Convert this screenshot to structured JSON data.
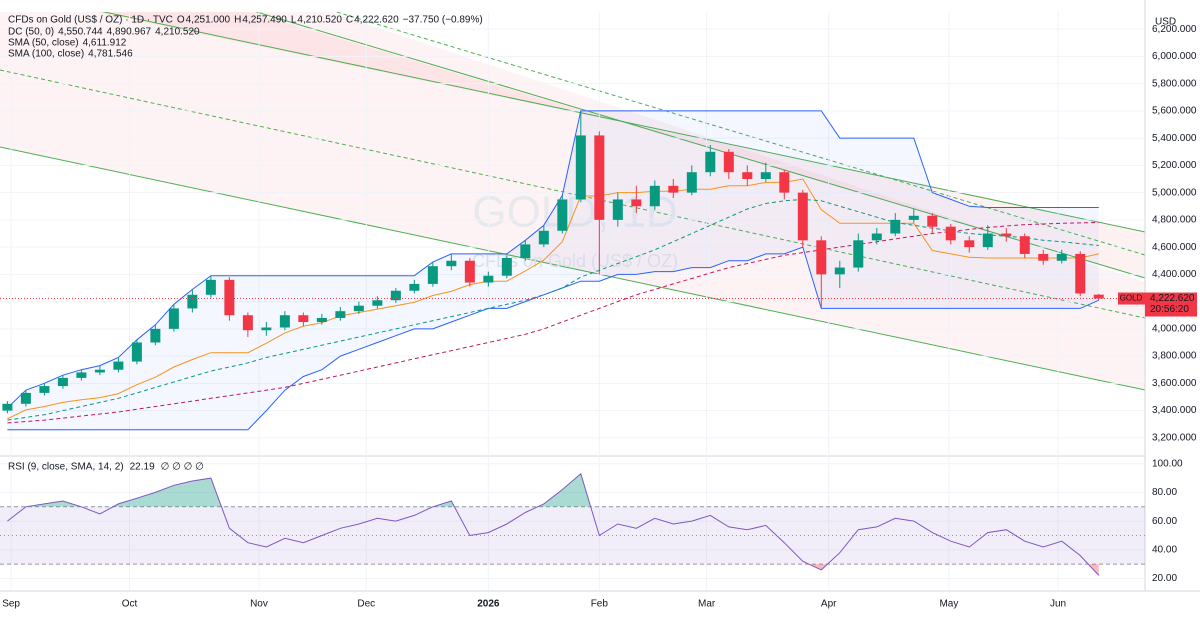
{
  "header": {
    "title": "CFDs on Gold (US$ / OZ) · 1D · TVC",
    "ohlc": [
      {
        "key": "O",
        "value": "4,251.000"
      },
      {
        "key": "H",
        "value": "4,257.490"
      },
      {
        "key": "L",
        "value": "4,210.520"
      },
      {
        "key": "C",
        "value": "4,222.620"
      }
    ],
    "change": "−37.750 (−0.89%)",
    "currency": "USD",
    "watermark": "GOLD, 1D",
    "watermark_sub": "CFDs on Gold (US$ / OZ)",
    "price_tag": {
      "symbol": "GOLD",
      "price": "4,222.620",
      "countdown": "20:56:20"
    }
  },
  "legend": [
    {
      "name": "DC (50, 0)",
      "values": [
        "4,550.744",
        "4,890.967",
        "4,210.520"
      ],
      "colors": [
        "#f7931a",
        "#2962ff",
        "#2962ff"
      ]
    },
    {
      "name": "SMA (50, close)",
      "values": [
        "4,611.912"
      ],
      "colors": [
        "#089981"
      ]
    },
    {
      "name": "SMA (100, close)",
      "values": [
        "4,781.546"
      ],
      "colors": [
        "#c2185b"
      ]
    }
  ],
  "chart_data": [
    {
      "type": "candlestick",
      "up_color": "#089981",
      "down_color": "#f23645",
      "open": [
        3400,
        3450,
        3530,
        3580,
        3640,
        3680,
        3700,
        3760,
        3900,
        4000,
        4150,
        4250,
        4360,
        4100,
        3990,
        4010,
        4100,
        4050,
        4080,
        4130,
        4170,
        4210,
        4280,
        4330,
        4460,
        4500,
        4340,
        4390,
        4520,
        4620,
        4720,
        4950,
        5420,
        4800,
        4950,
        4900,
        5050,
        5000,
        5150,
        5300,
        5150,
        5100,
        5150,
        5000,
        4650,
        4400,
        4450,
        4650,
        4700,
        4800,
        4830,
        4750,
        4650,
        4600,
        4700,
        4680,
        4550,
        4500,
        4550,
        4251
      ],
      "high": [
        3470,
        3550,
        3600,
        3660,
        3700,
        3730,
        3790,
        3920,
        4030,
        4180,
        4290,
        4390,
        4380,
        4120,
        4050,
        4130,
        4120,
        4110,
        4160,
        4200,
        4240,
        4300,
        4360,
        4490,
        4550,
        4520,
        4420,
        4540,
        4650,
        4760,
        4980,
        5600,
        5450,
        5000,
        5050,
        5090,
        5100,
        5200,
        5350,
        5320,
        5200,
        5220,
        5170,
        5020,
        4680,
        4500,
        4700,
        4740,
        4850,
        4880,
        4850,
        4770,
        4680,
        4760,
        4740,
        4700,
        4580,
        4580,
        4570,
        4257.49
      ],
      "low": [
        3380,
        3430,
        3510,
        3560,
        3620,
        3660,
        3680,
        3740,
        3880,
        3980,
        4120,
        4230,
        4060,
        3940,
        3950,
        3990,
        4020,
        4030,
        4060,
        4110,
        4150,
        4190,
        4260,
        4310,
        4430,
        4310,
        4310,
        4370,
        4500,
        4600,
        4700,
        4930,
        4400,
        4750,
        4850,
        4870,
        4960,
        4980,
        5120,
        5100,
        5050,
        5080,
        4950,
        4600,
        4150,
        4300,
        4420,
        4620,
        4680,
        4780,
        4700,
        4620,
        4560,
        4580,
        4640,
        4520,
        4470,
        4480,
        4240,
        4210.52
      ],
      "close": [
        3450,
        3530,
        3580,
        3640,
        3680,
        3700,
        3760,
        3900,
        4000,
        4150,
        4250,
        4360,
        4100,
        3990,
        4010,
        4100,
        4050,
        4080,
        4130,
        4170,
        4210,
        4280,
        4330,
        4460,
        4500,
        4340,
        4390,
        4520,
        4620,
        4720,
        4950,
        5420,
        4800,
        4950,
        4900,
        5050,
        5000,
        5150,
        5300,
        5150,
        5100,
        5150,
        5000,
        4650,
        4400,
        4450,
        4650,
        4700,
        4800,
        4830,
        4750,
        4650,
        4600,
        4700,
        4680,
        4550,
        4500,
        4550,
        4260,
        4222.62
      ],
      "series": [
        {
          "color": "#2962ff",
          "values": [
            3420,
            3550,
            3600,
            3660,
            3700,
            3730,
            3790,
            3920,
            4030,
            4180,
            4290,
            4390,
            4390,
            4390,
            4390,
            4390,
            4390,
            4390,
            4390,
            4390,
            4390,
            4390,
            4390,
            4490,
            4550,
            4550,
            4550,
            4550,
            4650,
            4760,
            4980,
            5600,
            5600,
            5600,
            5600,
            5600,
            5600,
            5600,
            5600,
            5600,
            5600,
            5600,
            5600,
            5600,
            5600,
            5400,
            5400,
            5400,
            5400,
            5400,
            5000,
            4950,
            4900,
            4890.967,
            4890.967,
            4890.967,
            4890.967,
            4890.967,
            4890.967,
            4890.967
          ]
        },
        {
          "color": "#2962ff",
          "values": [
            3260,
            3260,
            3260,
            3260,
            3260,
            3260,
            3260,
            3260,
            3260,
            3260,
            3260,
            3260,
            3260,
            3260,
            3400,
            3550,
            3650,
            3700,
            3800,
            3850,
            3900,
            3950,
            4000,
            4000,
            4050,
            4100,
            4150,
            4150,
            4200,
            4250,
            4300,
            4350,
            4350,
            4400,
            4400,
            4420,
            4420,
            4450,
            4450,
            4500,
            4500,
            4550,
            4550,
            4600,
            4150,
            4150,
            4150,
            4150,
            4150,
            4150,
            4150,
            4150,
            4150,
            4150,
            4150,
            4150,
            4150,
            4150,
            4150,
            4210.52
          ]
        },
        {
          "color": "#f7931a",
          "values": [
            3340,
            3405,
            3430,
            3460,
            3480,
            3495,
            3525,
            3590,
            3645,
            3720,
            3775,
            3825,
            3825,
            3825,
            3895,
            3970,
            4020,
            4045,
            4095,
            4120,
            4145,
            4170,
            4195,
            4245,
            4275,
            4325,
            4350,
            4350,
            4425,
            4505,
            4640,
            4975,
            4975,
            5000,
            5000,
            5010,
            5010,
            5025,
            5025,
            5050,
            5050,
            5075,
            5075,
            5100,
            4875,
            4775,
            4775,
            4775,
            4775,
            4775,
            4575,
            4550,
            4525,
            4520,
            4520,
            4520,
            4520,
            4520,
            4520,
            4550.744
          ]
        },
        {
          "color": "#089981",
          "dash": true,
          "values": [
            3330,
            3350,
            3370,
            3400,
            3430,
            3460,
            3490,
            3530,
            3570,
            3610,
            3650,
            3690,
            3720,
            3750,
            3790,
            3820,
            3850,
            3880,
            3910,
            3940,
            3970,
            4000,
            4030,
            4060,
            4090,
            4120,
            4150,
            4180,
            4210,
            4250,
            4300,
            4380,
            4430,
            4480,
            4530,
            4580,
            4640,
            4700,
            4760,
            4820,
            4880,
            4920,
            4940,
            4950,
            4940,
            4900,
            4860,
            4820,
            4780,
            4760,
            4740,
            4720,
            4700,
            4690,
            4680,
            4670,
            4650,
            4640,
            4625,
            4611.912
          ]
        },
        {
          "color": "#c2185b",
          "dash": true,
          "values": [
            3310,
            3320,
            3330,
            3345,
            3360,
            3375,
            3390,
            3410,
            3430,
            3450,
            3470,
            3490,
            3510,
            3530,
            3550,
            3570,
            3600,
            3630,
            3660,
            3690,
            3720,
            3750,
            3780,
            3810,
            3840,
            3870,
            3900,
            3930,
            3960,
            4000,
            4050,
            4100,
            4150,
            4200,
            4250,
            4290,
            4330,
            4370,
            4410,
            4450,
            4480,
            4510,
            4540,
            4560,
            4580,
            4600,
            4620,
            4640,
            4660,
            4680,
            4700,
            4715,
            4730,
            4745,
            4755,
            4765,
            4770,
            4775,
            4778,
            4781.546
          ]
        }
      ],
      "xlim": [
        -0.4,
        61.5
      ],
      "ylim": [
        3074,
        6326
      ],
      "yticks": [
        {
          "value": 3200,
          "label": "3,200.000"
        },
        {
          "value": 3400,
          "label": "3,400.000"
        },
        {
          "value": 3600,
          "label": "3,600.000"
        },
        {
          "value": 3800,
          "label": "3,800.000"
        },
        {
          "value": 4000,
          "label": "4,000.000"
        },
        {
          "value": 4200,
          "label": "4,200.000"
        },
        {
          "value": 4400,
          "label": "4,400.000"
        },
        {
          "value": 4600,
          "label": "4,600.000"
        },
        {
          "value": 4800,
          "label": "4,800.000"
        },
        {
          "value": 5000,
          "label": "5,000.000"
        },
        {
          "value": 5200,
          "label": "5,200.000"
        },
        {
          "value": 5400,
          "label": "5,400.000"
        },
        {
          "value": 5600,
          "label": "5,600.000"
        },
        {
          "value": 5800,
          "label": "5,800.000"
        },
        {
          "value": 6000,
          "label": "6,000.000"
        },
        {
          "value": 6200,
          "label": "6,200.000"
        }
      ],
      "xticks": [
        {
          "value": 0.2,
          "label": "Sep"
        },
        {
          "value": 6.6,
          "label": "Oct"
        },
        {
          "value": 13.6,
          "label": "Nov"
        },
        {
          "value": 19.4,
          "label": "Dec"
        },
        {
          "value": 26,
          "label": "2026"
        },
        {
          "value": 32,
          "label": "Feb"
        },
        {
          "value": 37.8,
          "label": "Mar"
        },
        {
          "value": 44.4,
          "label": "Apr"
        },
        {
          "value": 50.9,
          "label": "May"
        },
        {
          "value": 56.8,
          "label": "Jun"
        }
      ]
    },
    {
      "type": "line",
      "title": "RSI (9, close, SMA, 14, 2)",
      "value_label": "22.19",
      "extra": "∅ ∅ ∅ ∅",
      "color": "#7e57c2",
      "values": [
        60,
        70,
        72,
        74,
        70,
        65,
        72,
        76,
        80,
        85,
        88,
        90,
        55,
        45,
        42,
        48,
        45,
        50,
        55,
        58,
        62,
        60,
        64,
        70,
        74,
        50,
        52,
        58,
        66,
        72,
        82,
        93,
        50,
        58,
        55,
        62,
        58,
        60,
        64,
        56,
        54,
        57,
        45,
        32,
        26,
        38,
        54,
        56,
        62,
        60,
        52,
        46,
        42,
        52,
        54,
        46,
        42,
        46,
        36,
        22.19
      ],
      "levels": [
        70,
        50,
        30
      ],
      "xlim": [
        -0.4,
        61.5
      ],
      "ylim": [
        12,
        104
      ],
      "yticks": [
        {
          "value": 20,
          "label": "20.00"
        },
        {
          "value": 40,
          "label": "40.00"
        },
        {
          "value": 60,
          "label": "60.00"
        },
        {
          "value": 80,
          "label": "80.00"
        },
        {
          "value": 100,
          "label": "100.00"
        }
      ]
    }
  ]
}
